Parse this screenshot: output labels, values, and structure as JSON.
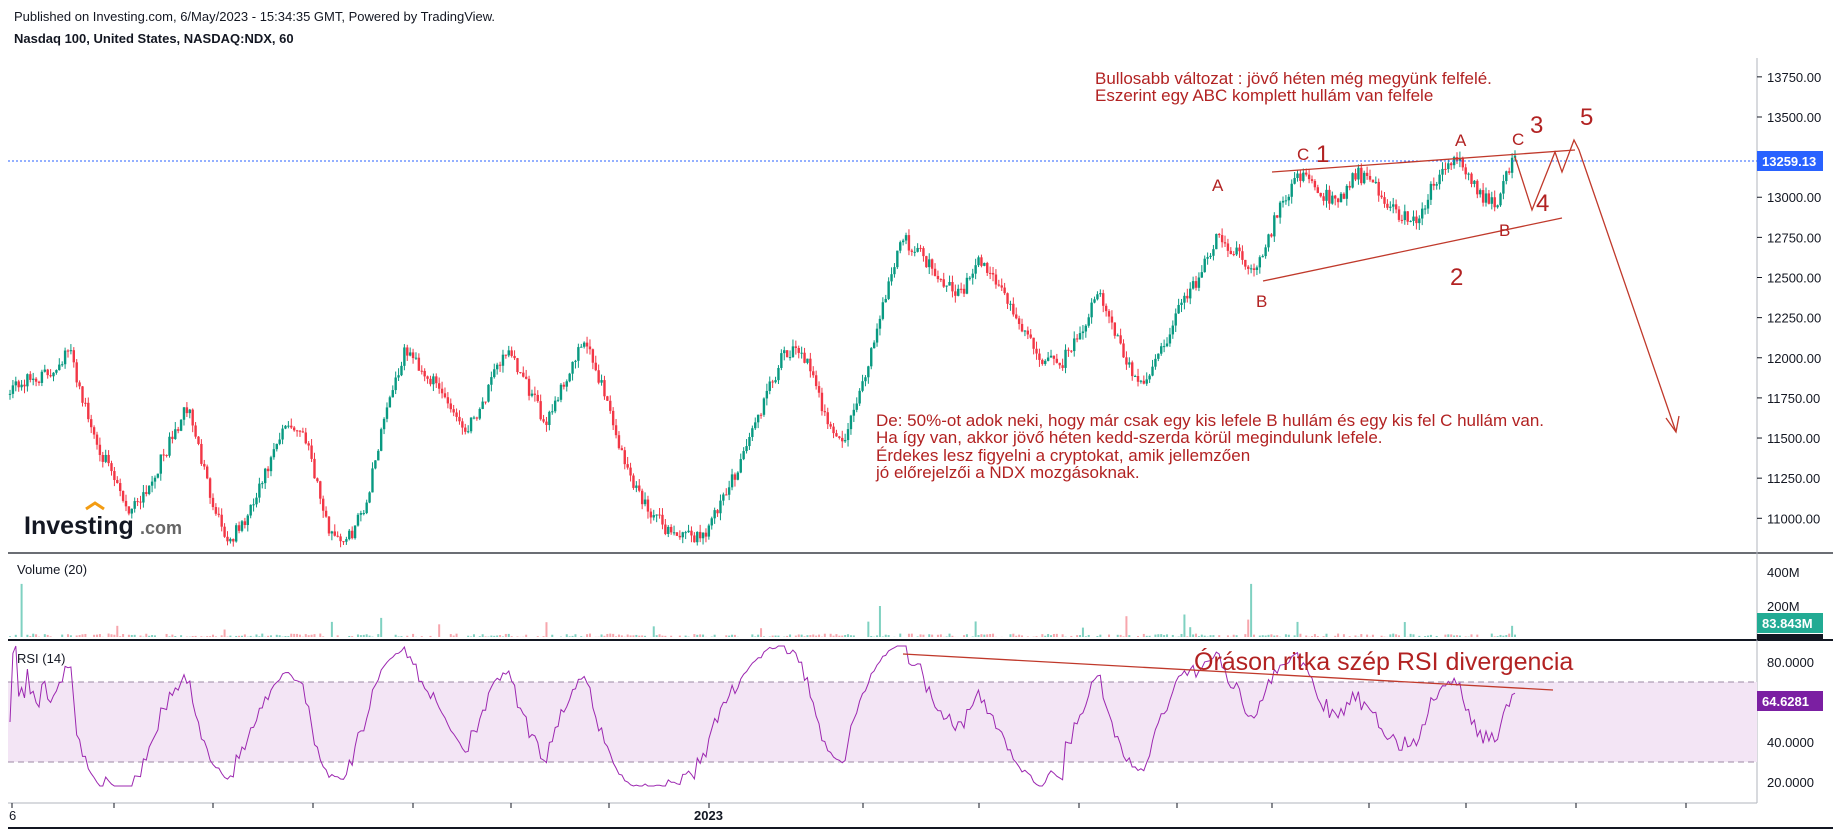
{
  "header": {
    "published": "Published on Investing.com, 6/May/2023 - 15:34:35 GMT, Powered by TradingView.",
    "symbol": "Nasdaq 100, United States, NASDAQ:NDX, 60"
  },
  "logo": {
    "main": "Investing",
    "suffix": ".com"
  },
  "colors": {
    "up": "#089981",
    "down": "#f23645",
    "annotation": "#b22222",
    "rsi": "#9c27b0",
    "rsi_band": "#f3e5f5",
    "price_line": "#2962ff",
    "volume_badge": "#22ab94",
    "rsi_badge": "#7b1fa2"
  },
  "annotations": {
    "top_note": [
      "Bullosabb változat : jövő héten még megyünk felfelé.",
      "Eszerint egy ABC komplett hullám van felfele"
    ],
    "mid_note": [
      "De: 50%-ot adok neki, hogy már csak egy kis lefele B hullám és egy kis fel C hullám van.",
      "Ha így van, akkor jövő héten kedd-szerda körül megindulunk lefele.",
      "Érdekes lesz figyelni a cryptokat, amik jellemzően",
      "jó előrejelzői a NDX mozgásoknak."
    ],
    "rsi_note": "Óráson ritka szép RSI divergencia",
    "wave_labels": {
      "A_left": "A",
      "B_left": "B",
      "C1_C": "C",
      "C1_1": "1",
      "A_right": "A",
      "B_right": "B",
      "C_right": "C",
      "w2": "2",
      "w3": "3",
      "w4": "4",
      "w5": "5"
    }
  },
  "panes": {
    "volume_label": "Volume (20)",
    "rsi_label": "RSI (14)",
    "volume_value": "83.843M",
    "rsi_value": "64.6281",
    "price_value": "13259.13"
  },
  "chart_data": {
    "type": "candlestick",
    "title": "Nasdaq 100, United States, NASDAQ:NDX, 60",
    "price_axis": {
      "ticks": [
        "13750.00",
        "13500.00",
        "13250.00",
        "13000.00",
        "12750.00",
        "12500.00",
        "12250.00",
        "12000.00",
        "11750.00",
        "11500.00",
        "11250.00",
        "11000.00"
      ],
      "range": [
        10800,
        13800
      ]
    },
    "volume_axis": {
      "ticks": [
        "400M",
        "200M"
      ],
      "range": [
        0,
        500
      ]
    },
    "rsi_axis": {
      "ticks": [
        "80.0000",
        "60.0000",
        "40.0000",
        "20.0000"
      ],
      "range": [
        10,
        90
      ],
      "upper_band": 70,
      "lower_band": 30
    },
    "x_ticks": [
      "6",
      "2023"
    ],
    "last_price": 13259.13,
    "approx_close_path": [
      [
        0,
        11820
      ],
      [
        4,
        11900
      ],
      [
        6,
        12050
      ],
      [
        8,
        11600
      ],
      [
        10,
        11300
      ],
      [
        12,
        11050
      ],
      [
        14,
        11200
      ],
      [
        16,
        11450
      ],
      [
        18,
        11700
      ],
      [
        20,
        11200
      ],
      [
        22,
        10850
      ],
      [
        24,
        11000
      ],
      [
        26,
        11300
      ],
      [
        28,
        11600
      ],
      [
        30,
        11500
      ],
      [
        32,
        10950
      ],
      [
        34,
        10850
      ],
      [
        36,
        11100
      ],
      [
        38,
        11700
      ],
      [
        40,
        12050
      ],
      [
        42,
        11900
      ],
      [
        44,
        11750
      ],
      [
        46,
        11550
      ],
      [
        48,
        11750
      ],
      [
        50,
        12050
      ],
      [
        52,
        11850
      ],
      [
        54,
        11600
      ],
      [
        56,
        11850
      ],
      [
        58,
        12100
      ],
      [
        60,
        11800
      ],
      [
        62,
        11350
      ],
      [
        64,
        11100
      ],
      [
        66,
        10950
      ],
      [
        68,
        10880
      ],
      [
        70,
        10900
      ],
      [
        72,
        11100
      ],
      [
        74,
        11400
      ],
      [
        76,
        11700
      ],
      [
        78,
        12000
      ],
      [
        80,
        12050
      ],
      [
        82,
        11700
      ],
      [
        84,
        11450
      ],
      [
        86,
        11800
      ],
      [
        88,
        12300
      ],
      [
        90,
        12750
      ],
      [
        92,
        12650
      ],
      [
        94,
        12500
      ],
      [
        96,
        12400
      ],
      [
        98,
        12600
      ],
      [
        100,
        12450
      ],
      [
        102,
        12200
      ],
      [
        104,
        12000
      ],
      [
        106,
        11950
      ],
      [
        108,
        12150
      ],
      [
        110,
        12400
      ],
      [
        112,
        12100
      ],
      [
        114,
        11800
      ],
      [
        116,
        12000
      ],
      [
        118,
        12300
      ],
      [
        120,
        12500
      ],
      [
        122,
        12750
      ],
      [
        124,
        12650
      ],
      [
        126,
        12550
      ],
      [
        128,
        12900
      ],
      [
        130,
        13150
      ],
      [
        132,
        13050
      ],
      [
        134,
        12950
      ],
      [
        136,
        13150
      ],
      [
        138,
        13050
      ],
      [
        140,
        12900
      ],
      [
        142,
        12850
      ],
      [
        144,
        13100
      ],
      [
        146,
        13250
      ],
      [
        148,
        13050
      ],
      [
        150,
        12950
      ],
      [
        152,
        13259
      ]
    ],
    "rsi_series": {
      "name": "RSI (14)",
      "approx_range": [
        20,
        87
      ]
    },
    "volume_series": {
      "name": "Volume (20)",
      "spikes": [
        [
          "early",
          300
        ],
        [
          "mid",
          240
        ],
        [
          "late",
          330
        ]
      ]
    }
  }
}
